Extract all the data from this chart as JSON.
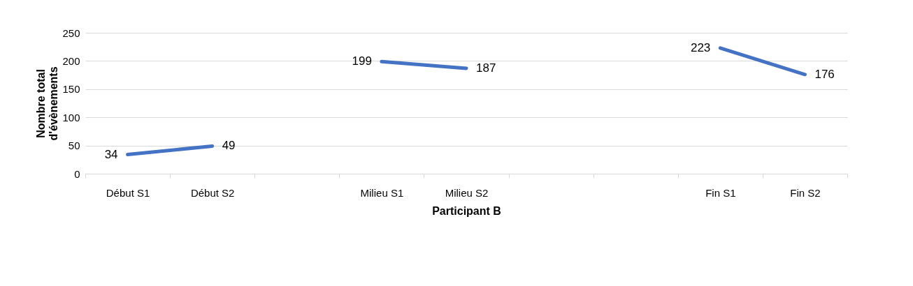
{
  "chart_data": {
    "type": "line",
    "xlabel": "Participant B",
    "ylabel": "Nombre total d'évènements",
    "categories": [
      "Début S1",
      "Début S2",
      null,
      "Milieu S1",
      "Milieu S2",
      null,
      null,
      "Fin S1",
      "Fin S2"
    ],
    "series": [
      {
        "color": "#4472c4",
        "values": [
          34,
          49,
          null,
          199,
          187,
          null,
          null,
          223,
          176
        ]
      }
    ],
    "ylim": [
      0,
      250
    ],
    "yticks": [
      0,
      50,
      100,
      150,
      200,
      250
    ],
    "grid": "y",
    "legend": false,
    "marker": "none",
    "line_style": "solid",
    "data_labels": true
  }
}
